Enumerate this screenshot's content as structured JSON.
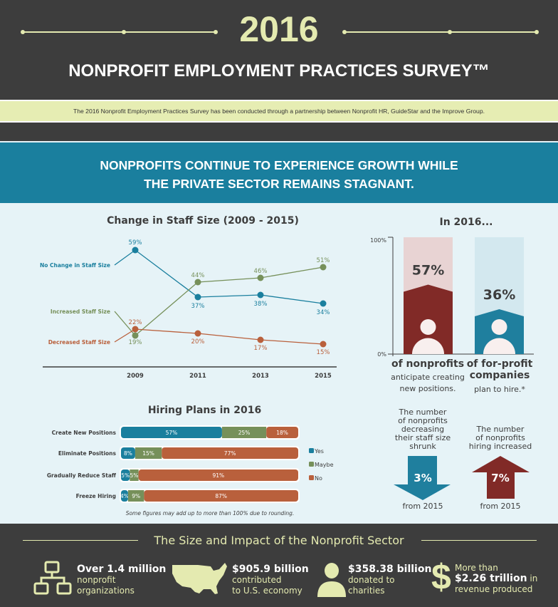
{
  "header": {
    "year": "2016",
    "title": "NONPROFIT EMPLOYMENT PRACTICES SURVEY™",
    "subtitle": "The 2016 Nonprofit Employment Practices Survey has been conducted through a partnership between Nonprofit HR, GuideStar and the Improve Group."
  },
  "banner": {
    "line1": "NONPROFITS CONTINUE TO EXPERIENCE GROWTH WHILE",
    "line2": "THE PRIVATE SECTOR REMAINS STAGNANT."
  },
  "colors": {
    "teal": "#1a7f9e",
    "green": "#76905a",
    "orange": "#b9603c",
    "maroon": "#812a27",
    "dark": "#3d3d3d",
    "cream": "#e4eab0"
  },
  "chart_data": [
    {
      "type": "line",
      "title": "Change in Staff Size (2009 - 2015)",
      "x": [
        "2009",
        "2011",
        "2013",
        "2015"
      ],
      "series": [
        {
          "name": "No Change in Staff Size",
          "values": [
            59,
            37,
            38,
            34
          ],
          "color": "#1a7f9e"
        },
        {
          "name": "Increased Staff Size",
          "values": [
            19,
            44,
            46,
            51
          ],
          "color": "#76905a"
        },
        {
          "name": "Decreased Staff Size",
          "values": [
            22,
            20,
            17,
            15
          ],
          "color": "#b9603c"
        }
      ],
      "unit": "%"
    },
    {
      "type": "bar",
      "stacked": true,
      "orientation": "horizontal",
      "title": "Hiring Plans in 2016",
      "categories": [
        "Create New Positions",
        "Eliminate Positions",
        "Gradually Reduce Staff",
        "Freeze Hiring"
      ],
      "series": [
        {
          "name": "Yes",
          "values": [
            57,
            8,
            5,
            4
          ],
          "color": "#1a7f9e"
        },
        {
          "name": "Maybe",
          "values": [
            25,
            15,
            5,
            9
          ],
          "color": "#76905a"
        },
        {
          "name": "No",
          "values": [
            18,
            77,
            91,
            87
          ],
          "color": "#b9603c"
        }
      ],
      "footnote": "Some figures may add up to more than 100% due to rounding."
    },
    {
      "type": "bar",
      "title": "In 2016...",
      "ylim": [
        0,
        100
      ],
      "ytick_labels": [
        "100%",
        "0%"
      ],
      "categories": [
        "of nonprofits",
        "of for-profit companies"
      ],
      "values": [
        57,
        36
      ],
      "value_labels": [
        "57%",
        "36%"
      ]
    }
  ],
  "right": {
    "np_bold": "of nonprofits",
    "np_l1": "anticipate creating",
    "np_l2": "new positions.",
    "fp_bold1": "of for-profit",
    "fp_bold2": "companies",
    "fp_l1": "plan to hire.*",
    "dec_text": [
      "The number",
      "of nonprofits",
      "decreasing",
      "their staff size",
      "shrunk"
    ],
    "dec_value": "3%",
    "dec_from": "from 2015",
    "inc_text": [
      "The number",
      "of nonprofits",
      "hiring increased"
    ],
    "inc_value": "7%",
    "inc_from": "from 2015"
  },
  "footer": {
    "title": "The Size and Impact of the Nonprofit Sector",
    "items": [
      {
        "bold": "Over 1.4 million",
        "l1": "nonprofit",
        "l2": "organizations",
        "icon": "org-chart-icon"
      },
      {
        "bold": "$905.9 billion",
        "l1": "contributed",
        "l2": "to U.S. economy",
        "icon": "usa-map-icon"
      },
      {
        "bold": "$358.38 billion",
        "l1": "donated to",
        "l2": "charities",
        "icon": "person-icon"
      },
      {
        "pre": "More than",
        "bold": "$2.26 trillion",
        "post": " in",
        "l2": "revenue produced",
        "icon": "dollar-icon"
      }
    ]
  }
}
